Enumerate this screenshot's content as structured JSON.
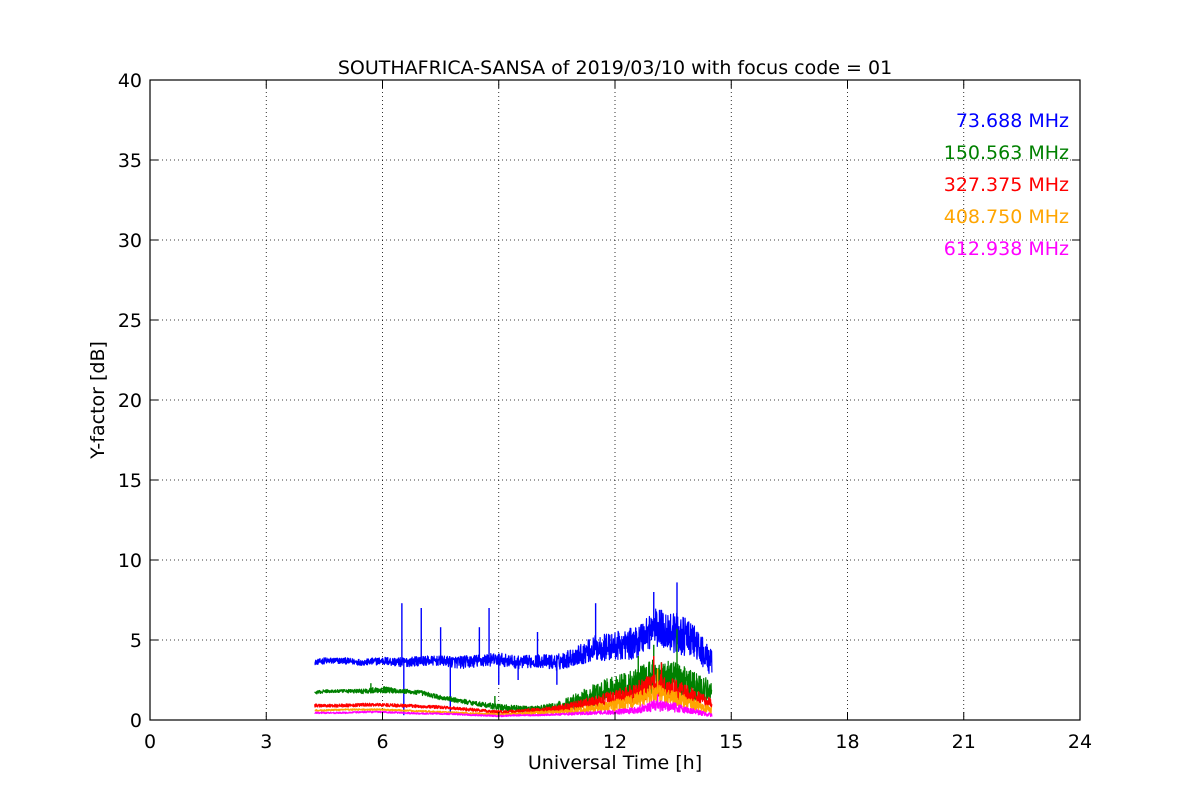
{
  "chart_data": {
    "type": "line",
    "title": "SOUTHAFRICA-SANSA of 2019/03/10 with focus code = 01",
    "xlabel": "Universal Time [h]",
    "ylabel": "Y-factor [dB]",
    "xlim": [
      0,
      24
    ],
    "ylim": [
      0,
      40
    ],
    "xticks": [
      0,
      3,
      6,
      9,
      12,
      15,
      18,
      21,
      24
    ],
    "yticks": [
      0,
      5,
      10,
      15,
      20,
      25,
      30,
      35,
      40
    ],
    "xtick_labels": [
      "0",
      "3",
      "6",
      "9",
      "12",
      "15",
      "18",
      "21",
      "24"
    ],
    "ytick_labels": [
      "0",
      "5",
      "10",
      "15",
      "20",
      "25",
      "30",
      "35",
      "40"
    ],
    "grid": true,
    "legend_placement": "top-right",
    "series": [
      {
        "name": "73.688 MHz",
        "color": "#0000ff",
        "x": [
          4.25,
          4.5,
          5.0,
          5.5,
          6.0,
          6.5,
          7.0,
          7.5,
          8.0,
          8.5,
          9.0,
          9.5,
          10.0,
          10.5,
          11.0,
          11.5,
          12.0,
          12.5,
          13.0,
          13.5,
          14.0,
          14.5
        ],
        "y": [
          3.6,
          3.7,
          3.7,
          3.6,
          3.7,
          3.6,
          3.7,
          3.7,
          3.6,
          3.7,
          3.8,
          3.6,
          3.7,
          3.6,
          4.0,
          4.5,
          4.6,
          4.8,
          5.8,
          5.5,
          5.0,
          3.5
        ],
        "spread": [
          0.15,
          0.2,
          0.2,
          0.2,
          0.25,
          0.3,
          0.3,
          0.3,
          0.4,
          0.4,
          0.4,
          0.4,
          0.4,
          0.5,
          0.6,
          0.8,
          0.9,
          1.0,
          1.2,
          1.3,
          1.1,
          0.8
        ],
        "spikes": [
          [
            6.5,
            7.3
          ],
          [
            6.55,
            0.3
          ],
          [
            7.0,
            7.0
          ],
          [
            7.5,
            5.8
          ],
          [
            7.75,
            0.4
          ],
          [
            8.5,
            5.8
          ],
          [
            8.75,
            7.0
          ],
          [
            9.0,
            2.2
          ],
          [
            9.5,
            2.5
          ],
          [
            10.0,
            5.5
          ],
          [
            10.5,
            2.2
          ],
          [
            11.5,
            7.3
          ],
          [
            13.0,
            8.0
          ],
          [
            13.6,
            8.6
          ]
        ]
      },
      {
        "name": "150.563 MHz",
        "color": "#008000",
        "x": [
          4.25,
          4.5,
          5.0,
          5.5,
          6.0,
          6.5,
          7.0,
          7.5,
          8.0,
          8.5,
          9.0,
          9.5,
          10.0,
          10.5,
          11.0,
          11.5,
          12.0,
          12.5,
          13.0,
          13.5,
          14.0,
          14.5
        ],
        "y": [
          1.7,
          1.8,
          1.8,
          1.8,
          1.9,
          1.8,
          1.7,
          1.4,
          1.2,
          1.0,
          0.8,
          0.7,
          0.7,
          0.8,
          1.2,
          1.6,
          2.0,
          2.3,
          2.7,
          2.6,
          2.2,
          1.8
        ],
        "spread": [
          0.1,
          0.1,
          0.1,
          0.15,
          0.2,
          0.15,
          0.15,
          0.15,
          0.15,
          0.15,
          0.2,
          0.2,
          0.2,
          0.3,
          0.5,
          0.7,
          0.8,
          0.9,
          1.1,
          1.2,
          1.0,
          0.6
        ],
        "spikes": [
          [
            5.7,
            2.3
          ],
          [
            8.9,
            1.5
          ],
          [
            12.6,
            4.0
          ],
          [
            13.0,
            4.7
          ],
          [
            13.6,
            5.7
          ]
        ]
      },
      {
        "name": "327.375 MHz",
        "color": "#ff0000",
        "x": [
          4.25,
          4.5,
          5.0,
          5.5,
          6.0,
          6.5,
          7.0,
          7.5,
          8.0,
          8.5,
          9.0,
          9.5,
          10.0,
          10.5,
          11.0,
          11.5,
          12.0,
          12.5,
          13.0,
          13.5,
          14.0,
          14.5
        ],
        "y": [
          0.9,
          0.9,
          0.9,
          0.95,
          0.95,
          0.9,
          0.85,
          0.8,
          0.7,
          0.6,
          0.5,
          0.55,
          0.6,
          0.7,
          0.9,
          1.1,
          1.4,
          1.7,
          2.2,
          1.9,
          1.5,
          1.0
        ],
        "spread": [
          0.1,
          0.1,
          0.1,
          0.1,
          0.1,
          0.1,
          0.1,
          0.1,
          0.1,
          0.1,
          0.1,
          0.1,
          0.15,
          0.2,
          0.3,
          0.4,
          0.5,
          0.6,
          0.8,
          0.7,
          0.5,
          0.3
        ],
        "spikes": [
          [
            13.0,
            4.0
          ],
          [
            13.2,
            3.6
          ]
        ]
      },
      {
        "name": "408.750 MHz",
        "color": "#ffa500",
        "x": [
          4.25,
          4.5,
          5.0,
          5.5,
          6.0,
          6.5,
          7.0,
          7.5,
          8.0,
          8.5,
          9.0,
          9.5,
          10.0,
          10.5,
          11.0,
          11.5,
          12.0,
          12.5,
          13.0,
          13.5,
          14.0,
          14.5
        ],
        "y": [
          0.6,
          0.6,
          0.65,
          0.65,
          0.65,
          0.6,
          0.55,
          0.5,
          0.45,
          0.4,
          0.35,
          0.4,
          0.45,
          0.5,
          0.6,
          0.75,
          0.9,
          1.2,
          1.7,
          1.4,
          1.0,
          0.6
        ],
        "spread": [
          0.05,
          0.05,
          0.05,
          0.05,
          0.05,
          0.05,
          0.05,
          0.05,
          0.05,
          0.05,
          0.05,
          0.05,
          0.1,
          0.1,
          0.2,
          0.25,
          0.35,
          0.45,
          0.6,
          0.5,
          0.35,
          0.2
        ],
        "spikes": [
          [
            13.1,
            3.2
          ]
        ]
      },
      {
        "name": "612.938 MHz",
        "color": "#ff00ff",
        "x": [
          4.25,
          4.5,
          5.0,
          5.5,
          6.0,
          6.5,
          7.0,
          7.5,
          8.0,
          8.5,
          9.0,
          9.5,
          10.0,
          10.5,
          11.0,
          11.5,
          12.0,
          12.5,
          13.0,
          13.5,
          14.0,
          14.5
        ],
        "y": [
          0.45,
          0.45,
          0.45,
          0.5,
          0.5,
          0.45,
          0.4,
          0.4,
          0.35,
          0.3,
          0.25,
          0.3,
          0.3,
          0.35,
          0.4,
          0.45,
          0.5,
          0.6,
          0.9,
          0.8,
          0.55,
          0.3
        ],
        "spread": [
          0.05,
          0.05,
          0.05,
          0.05,
          0.05,
          0.05,
          0.05,
          0.05,
          0.05,
          0.05,
          0.05,
          0.05,
          0.05,
          0.05,
          0.1,
          0.1,
          0.15,
          0.2,
          0.35,
          0.3,
          0.2,
          0.1
        ],
        "spikes": [
          [
            13.1,
            1.6
          ]
        ]
      }
    ]
  }
}
